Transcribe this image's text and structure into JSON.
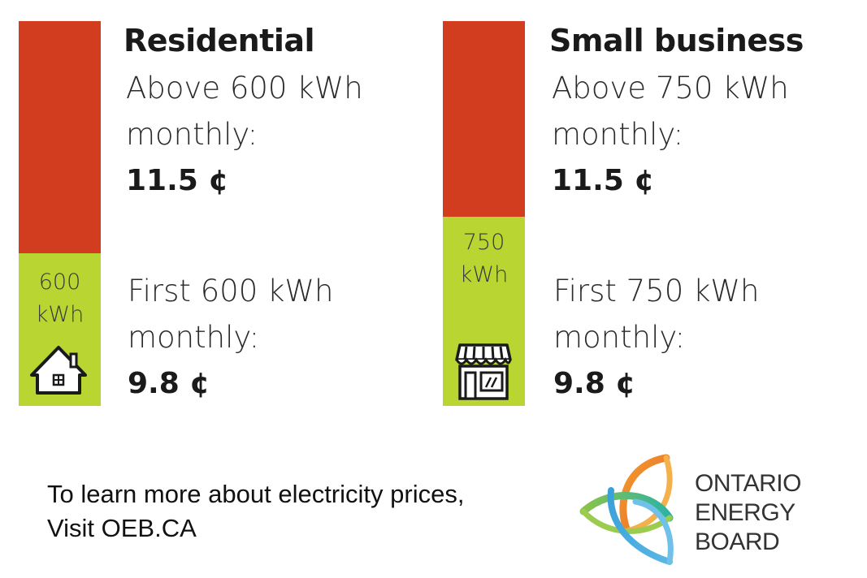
{
  "colors": {
    "upper_tier": "#d23c1f",
    "lower_tier": "#b9d532",
    "icon_stroke": "#1a1a1a"
  },
  "residential": {
    "heading": "Residential",
    "tier_label_line1": "600",
    "tier_label_line2": "kWh",
    "upper": {
      "line1": "Above 600 kWh",
      "line2": "monthly:",
      "price": "11.5 ¢"
    },
    "lower": {
      "line1": "First 600 kWh",
      "line2": "monthly:",
      "price": "9.8 ¢"
    },
    "icon": "house-icon"
  },
  "small_business": {
    "heading": "Small business",
    "tier_label_line1": "750",
    "tier_label_line2": "kWh",
    "upper": {
      "line1": "Above 750 kWh",
      "line2": "monthly:",
      "price": "11.5 ¢"
    },
    "lower": {
      "line1": "First 750 kWh",
      "line2": "monthly:",
      "price": "9.8 ¢"
    },
    "icon": "storefront-icon"
  },
  "footer": {
    "line1": "To learn more about electricity prices,",
    "line2": "Visit OEB.CA"
  },
  "logo": {
    "line1": "ONTARIO",
    "line2": "ENERGY",
    "line3": "BOARD",
    "icon": "oeb-leaf-logo"
  }
}
